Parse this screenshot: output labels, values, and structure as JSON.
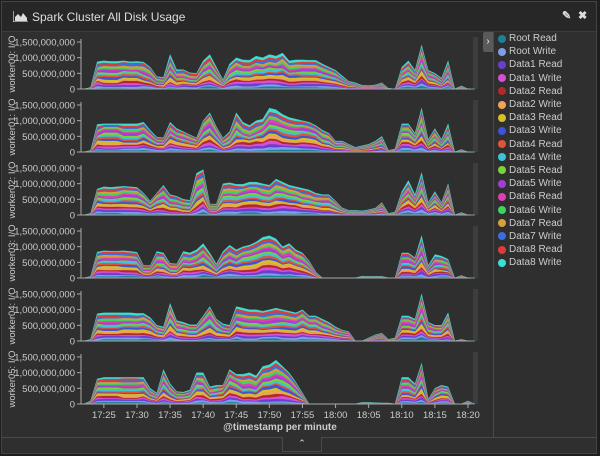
{
  "header": {
    "title": "Spark Cluster All Disk Usage",
    "title_icon": "area-chart-icon",
    "edit_icon": "pencil-icon",
    "close_icon": "close-icon"
  },
  "legend": {
    "toggle_glyph": "›",
    "items": [
      {
        "label": "Root Read",
        "color": "#1f7f9a"
      },
      {
        "label": "Root Write",
        "color": "#7f9ee8"
      },
      {
        "label": "Data1 Read",
        "color": "#6a3fd0"
      },
      {
        "label": "Data1 Write",
        "color": "#d64fd4"
      },
      {
        "label": "Data2 Read",
        "color": "#b02a2a"
      },
      {
        "label": "Data2 Write",
        "color": "#f0a25a"
      },
      {
        "label": "Data3 Read",
        "color": "#d4c02a"
      },
      {
        "label": "Data3 Write",
        "color": "#3f52d8"
      },
      {
        "label": "Data4 Read",
        "color": "#e0553a"
      },
      {
        "label": "Data4 Write",
        "color": "#3cc4d8"
      },
      {
        "label": "Data5 Read",
        "color": "#78d43a"
      },
      {
        "label": "Data5 Write",
        "color": "#a03fd8"
      },
      {
        "label": "Data6 Read",
        "color": "#e03fb4"
      },
      {
        "label": "Data6 Write",
        "color": "#3fd45c"
      },
      {
        "label": "Data7 Read",
        "color": "#d8a03a"
      },
      {
        "label": "Data7 Write",
        "color": "#3a6ee0"
      },
      {
        "label": "Data8 Read",
        "color": "#e03a3a"
      },
      {
        "label": "Data8 Write",
        "color": "#3ae0d4"
      }
    ]
  },
  "footer": {
    "toggle_glyph": "⌃"
  },
  "chart_data": {
    "type": "area",
    "stacked": true,
    "xlabel": "@timestamp per minute",
    "x_start": "17:22",
    "x_step_minutes": 1,
    "x_ticks": [
      "17:25",
      "17:30",
      "17:35",
      "17:40",
      "17:45",
      "17:50",
      "17:55",
      "18:00",
      "18:05",
      "18:10",
      "18:15",
      "18:20"
    ],
    "y_ticks": [
      "0",
      "500,000,000",
      "1,000,000,000",
      "1,500,000,000"
    ],
    "ylim": [
      0,
      1500
    ],
    "y_units": "millions",
    "rows": [
      {
        "ylabel": "worker00: I/O",
        "totals": [
          0,
          50,
          870,
          900,
          880,
          880,
          900,
          870,
          880,
          860,
          700,
          400,
          370,
          1100,
          620,
          620,
          520,
          500,
          900,
          1100,
          700,
          300,
          800,
          1000,
          930,
          920,
          1050,
          1000,
          1100,
          1050,
          1150,
          900,
          930,
          930,
          920,
          920,
          800,
          700,
          600,
          420,
          250,
          200,
          120,
          110,
          130,
          200,
          20,
          0,
          700,
          900,
          600,
          1400,
          600,
          500,
          350,
          900,
          0,
          100,
          0,
          0
        ]
      },
      {
        "ylabel": "worker01: I/O",
        "totals": [
          0,
          50,
          880,
          900,
          900,
          900,
          900,
          900,
          900,
          950,
          700,
          480,
          450,
          950,
          750,
          650,
          550,
          450,
          1000,
          1250,
          800,
          450,
          650,
          1250,
          950,
          850,
          1000,
          1050,
          1400,
          1350,
          1200,
          1100,
          1050,
          1000,
          950,
          850,
          700,
          600,
          350,
          350,
          250,
          150,
          200,
          250,
          350,
          500,
          50,
          100,
          900,
          900,
          600,
          1400,
          400,
          750,
          400,
          900,
          0,
          80,
          0,
          0
        ]
      },
      {
        "ylabel": "worker02: I/O",
        "totals": [
          0,
          50,
          830,
          900,
          880,
          900,
          920,
          900,
          880,
          700,
          450,
          700,
          950,
          650,
          600,
          500,
          470,
          1330,
          1450,
          350,
          350,
          1000,
          1030,
          980,
          980,
          1050,
          1050,
          1000,
          950,
          1150,
          1050,
          950,
          900,
          850,
          800,
          700,
          650,
          650,
          450,
          230,
          150,
          150,
          130,
          170,
          220,
          400,
          50,
          100,
          750,
          1100,
          650,
          1350,
          400,
          750,
          400,
          1000,
          0,
          80,
          0,
          0
        ]
      },
      {
        "ylabel": "worker03: I/O",
        "totals": [
          0,
          50,
          830,
          870,
          860,
          860,
          870,
          850,
          820,
          400,
          400,
          850,
          800,
          470,
          450,
          850,
          800,
          900,
          1100,
          800,
          450,
          850,
          1050,
          900,
          1000,
          1050,
          1150,
          1300,
          1350,
          1250,
          1000,
          1100,
          900,
          800,
          550,
          200,
          0,
          0,
          0,
          0,
          0,
          0,
          60,
          50,
          50,
          50,
          0,
          0,
          800,
          800,
          650,
          1350,
          400,
          750,
          700,
          600,
          0,
          80,
          0,
          0
        ]
      },
      {
        "ylabel": "worker04: I/O",
        "totals": [
          0,
          50,
          870,
          900,
          900,
          900,
          900,
          900,
          880,
          880,
          750,
          500,
          450,
          1200,
          650,
          600,
          520,
          520,
          800,
          1100,
          700,
          550,
          500,
          1100,
          1050,
          1000,
          1000,
          950,
          1000,
          1050,
          1000,
          950,
          900,
          1000,
          800,
          800,
          700,
          600,
          450,
          350,
          300,
          0,
          0,
          100,
          200,
          250,
          50,
          100,
          800,
          800,
          700,
          1500,
          600,
          500,
          500,
          900,
          0,
          50,
          0,
          0
        ]
      },
      {
        "ylabel": "worker05: I/O",
        "totals": [
          0,
          100,
          800,
          850,
          850,
          850,
          850,
          850,
          850,
          850,
          500,
          350,
          1100,
          650,
          400,
          380,
          450,
          1000,
          1000,
          550,
          600,
          600,
          1100,
          950,
          950,
          1000,
          900,
          1200,
          1250,
          1400,
          1200,
          1000,
          700,
          350,
          0,
          0,
          0,
          0,
          0,
          0,
          0,
          0,
          50,
          50,
          40,
          30,
          30,
          0,
          850,
          850,
          650,
          1300,
          150,
          500,
          600,
          550,
          0,
          0,
          100,
          0
        ]
      }
    ]
  }
}
